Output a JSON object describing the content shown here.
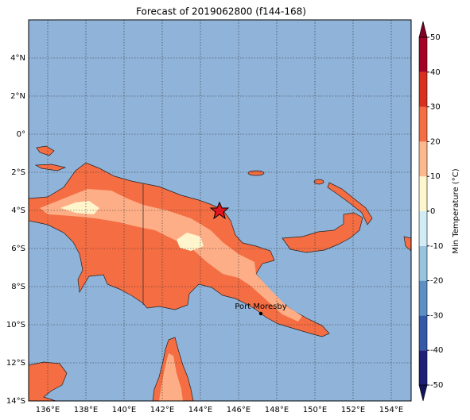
{
  "title": "Forecast of 2019062800 (f144-168)",
  "map": {
    "lon_ticks": [
      "136°E",
      "138°E",
      "140°E",
      "142°E",
      "144°E",
      "146°E",
      "148°E",
      "150°E",
      "152°E",
      "154°E"
    ],
    "lat_ticks": [
      "4°N",
      "2°N",
      "0°",
      "2°S",
      "4°S",
      "6°S",
      "8°S",
      "10°S",
      "12°S",
      "14°S"
    ],
    "city": "Port Moresby"
  },
  "colorbar": {
    "label": "Min Temperature (°C)",
    "ticks": [
      50,
      40,
      30,
      20,
      10,
      0,
      -10,
      -20,
      -30,
      -40,
      -50
    ],
    "colors": [
      "#1f1f7a",
      "#3459a8",
      "#5d8fc4",
      "#98c4e0",
      "#d2ecf6",
      "#fff7cc",
      "#fdb98e",
      "#f46d43",
      "#d7301f",
      "#a50026"
    ],
    "extend_colors": [
      "#14145a",
      "#7f0020"
    ]
  }
}
